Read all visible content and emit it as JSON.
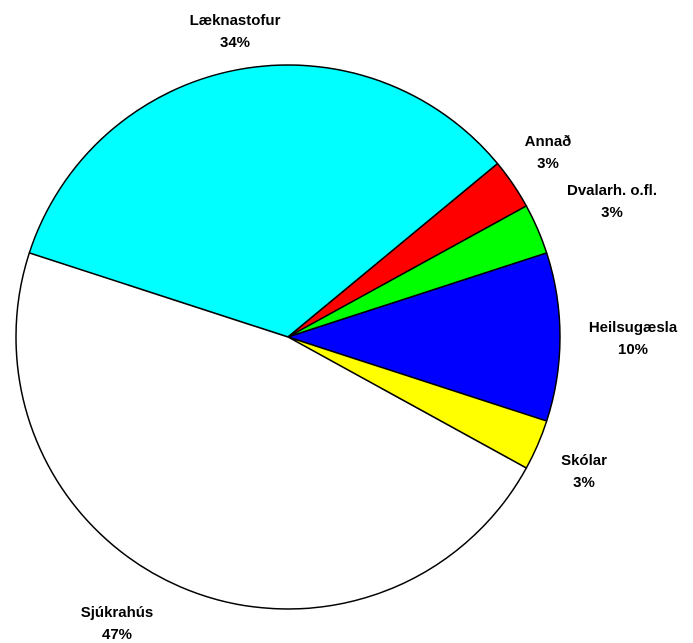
{
  "chart_data": {
    "type": "pie",
    "categories": [
      "Læknastofur",
      "Annað",
      "Dvalarh. o.fl.",
      "Heilsugæsla",
      "Skólar",
      "Sjúkrahús"
    ],
    "values": [
      34,
      3,
      3,
      10,
      3,
      47
    ],
    "value_labels": [
      "34%",
      "3%",
      "3%",
      "10%",
      "3%",
      "47%"
    ],
    "colors": [
      "#00ffff",
      "#ff0000",
      "#00ff00",
      "#0000ff",
      "#ffff00",
      "#ffffff"
    ]
  }
}
